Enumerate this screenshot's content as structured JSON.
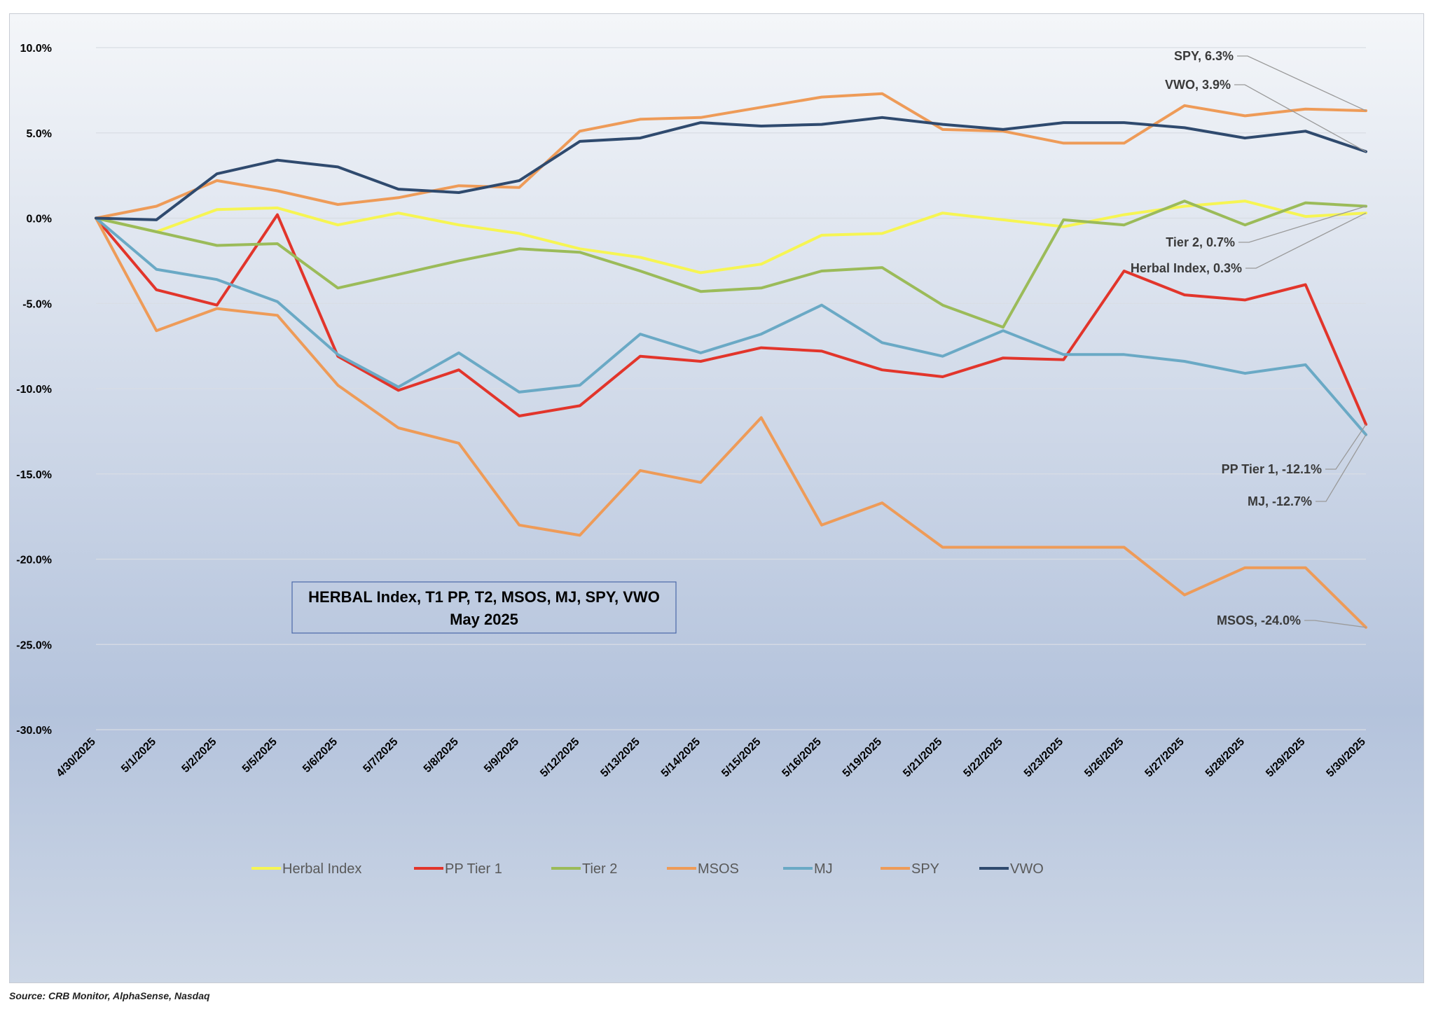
{
  "chart_data": {
    "type": "line",
    "title_lines": [
      "HERBAL Index, T1 PP, T2, MSOS, MJ, SPY, VWO",
      "May 2025"
    ],
    "x": [
      "4/30/2025",
      "5/1/2025",
      "5/2/2025",
      "5/5/2025",
      "5/6/2025",
      "5/7/2025",
      "5/8/2025",
      "5/9/2025",
      "5/12/2025",
      "5/13/2025",
      "5/14/2025",
      "5/15/2025",
      "5/16/2025",
      "5/19/2025",
      "5/21/2025",
      "5/22/2025",
      "5/23/2025",
      "5/26/2025",
      "5/27/2025",
      "5/28/2025",
      "5/29/2025",
      "5/30/2025"
    ],
    "ylim": [
      -30,
      10
    ],
    "yticks": [
      10,
      5,
      0,
      -5,
      -10,
      -15,
      -20,
      -25,
      -30
    ],
    "ytick_labels": [
      "10.0%",
      "5.0%",
      "0.0%",
      "-5.0%",
      "-10.0%",
      "-15.0%",
      "-20.0%",
      "-25.0%",
      "-30.0%"
    ],
    "grid": true,
    "legend_position": "bottom",
    "series": [
      {
        "name": "Herbal Index",
        "color": "#f6f553",
        "values": [
          0,
          -0.8,
          0.5,
          0.6,
          -0.4,
          0.3,
          -0.4,
          -0.9,
          -1.8,
          -2.3,
          -3.2,
          -2.7,
          -1.0,
          -0.9,
          0.3,
          -0.1,
          -0.5,
          0.2,
          0.7,
          1.0,
          0.1,
          0.3
        ]
      },
      {
        "name": "PP Tier 1",
        "color": "#e2352b",
        "values": [
          0,
          -4.2,
          -5.1,
          0.2,
          -8.1,
          -10.1,
          -8.9,
          -11.6,
          -11.0,
          -8.1,
          -8.4,
          -7.6,
          -7.8,
          -8.9,
          -9.3,
          -8.2,
          -8.3,
          -3.1,
          -4.5,
          -4.8,
          -3.9,
          -12.1
        ]
      },
      {
        "name": "Tier 2",
        "color": "#9bbb59",
        "values": [
          0,
          -0.8,
          -1.6,
          -1.5,
          -4.1,
          -3.3,
          -2.5,
          -1.8,
          -2.0,
          -3.1,
          -4.3,
          -4.1,
          -3.1,
          -2.9,
          -5.1,
          -6.4,
          -0.1,
          -0.4,
          1.0,
          -0.4,
          0.9,
          0.7
        ]
      },
      {
        "name": "MSOS",
        "color": "#ee9b58",
        "values": [
          0,
          -6.6,
          -5.3,
          -5.7,
          -9.8,
          -12.3,
          -13.2,
          -18.0,
          -18.6,
          -14.8,
          -15.5,
          -11.7,
          -18.0,
          -16.7,
          -19.3,
          -19.3,
          -19.3,
          -19.3,
          -22.1,
          -20.5,
          -20.5,
          -24.0
        ]
      },
      {
        "name": "MJ",
        "color": "#6aa9c5",
        "values": [
          0,
          -3.0,
          -3.6,
          -4.9,
          -8.0,
          -9.9,
          -7.9,
          -10.2,
          -9.8,
          -6.8,
          -7.9,
          -6.8,
          -5.1,
          -7.3,
          -8.1,
          -6.6,
          -8.0,
          -8.0,
          -8.4,
          -9.1,
          -8.6,
          -12.7
        ]
      },
      {
        "name": "SPY",
        "color": "#ee9b58",
        "values": [
          0,
          0.7,
          2.2,
          1.6,
          0.8,
          1.2,
          1.9,
          1.8,
          5.1,
          5.8,
          5.9,
          6.5,
          7.1,
          7.3,
          5.2,
          5.1,
          4.4,
          4.4,
          6.6,
          6.0,
          6.4,
          6.3
        ]
      },
      {
        "name": "VWO",
        "color": "#2f4a6e",
        "values": [
          0,
          -0.1,
          2.6,
          3.4,
          3.0,
          1.7,
          1.5,
          2.2,
          4.5,
          4.7,
          5.6,
          5.4,
          5.5,
          5.9,
          5.5,
          5.2,
          5.6,
          5.6,
          5.3,
          4.7,
          5.1,
          3.9
        ]
      }
    ],
    "annotations": [
      {
        "text": "SPY, 6.3%",
        "series": "SPY"
      },
      {
        "text": "VWO, 3.9%",
        "series": "VWO"
      },
      {
        "text": "Tier 2, 0.7%",
        "series": "Tier 2"
      },
      {
        "text": "Herbal Index, 0.3%",
        "series": "Herbal Index"
      },
      {
        "text": "PP Tier 1, -12.1%",
        "series": "PP Tier 1"
      },
      {
        "text": "MJ, -12.7%",
        "series": "MJ"
      },
      {
        "text": "MSOS, -24.0%",
        "series": "MSOS"
      }
    ]
  },
  "source_note": "Source: CRB Monitor, AlphaSense, Nasdaq"
}
